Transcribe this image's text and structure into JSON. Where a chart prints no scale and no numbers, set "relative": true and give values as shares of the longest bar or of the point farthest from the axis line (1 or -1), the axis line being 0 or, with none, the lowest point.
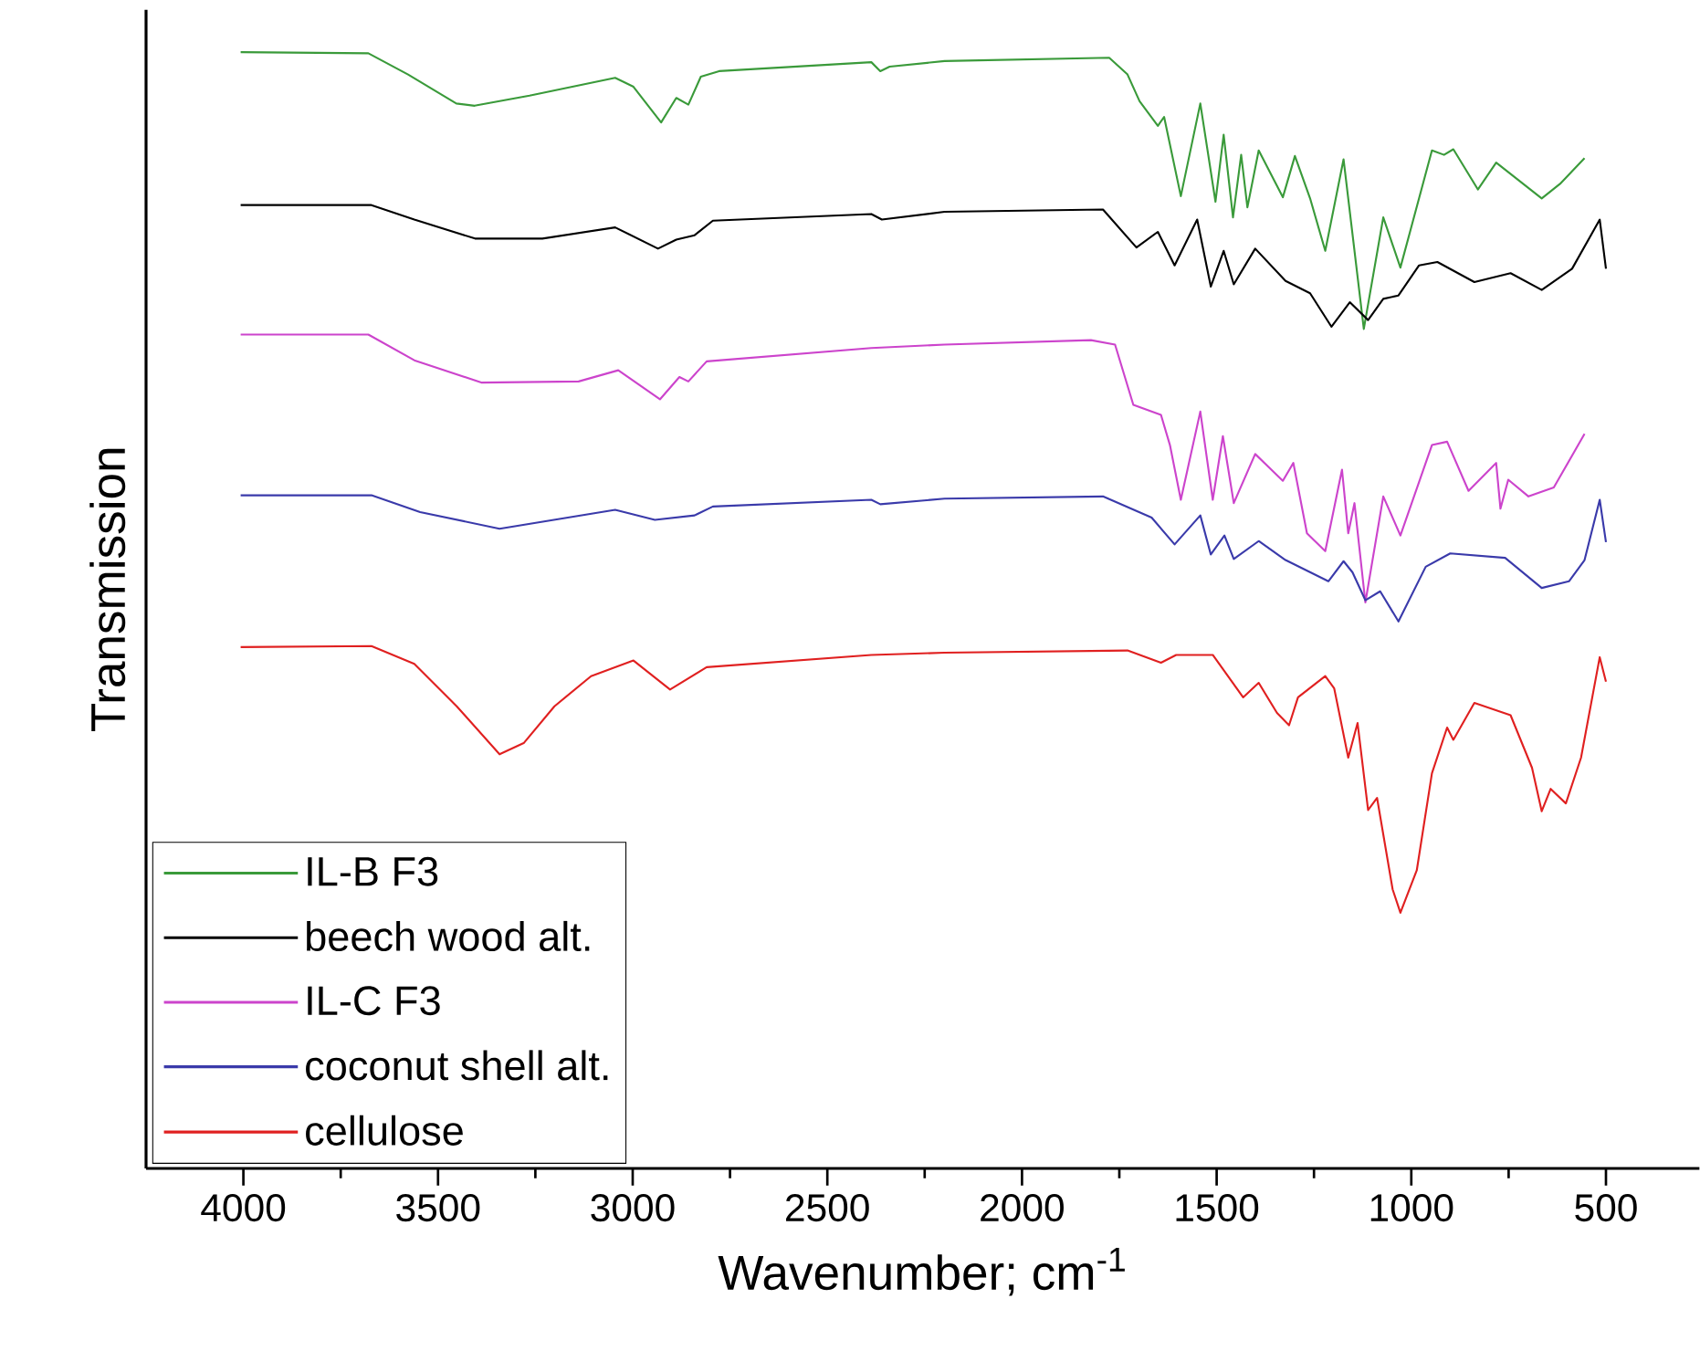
{
  "chart_data": {
    "type": "line",
    "relative": true,
    "xlabel": "Wavenumber; cm$^{-1}$",
    "ylabel": "Transmission",
    "xlim": [
      4250,
      260
    ],
    "xticks": [
      4000,
      {
        "value": 3750,
        "label": null
      },
      3500,
      {
        "value": 3250,
        "label": null
      },
      3000,
      {
        "value": 2750,
        "label": null
      },
      2500,
      {
        "value": 2250,
        "label": null
      },
      2000,
      {
        "value": 1750,
        "label": null
      },
      1500,
      {
        "value": 1250,
        "label": null
      },
      1000,
      {
        "value": 750,
        "label": null
      },
      500
    ],
    "legend": "bottom left",
    "series": [
      {
        "name": "IL-B F3",
        "color": "#3a9a3a",
        "x": [
          4007,
          3679,
          3577,
          3453,
          3406,
          3265,
          3045,
          2998,
          2927,
          2888,
          2857,
          2825,
          2778,
          2387,
          2364,
          2340,
          2199,
          1776,
          1729,
          1698,
          1651,
          1635,
          1592,
          1542,
          1503,
          1482,
          1458,
          1437,
          1421,
          1392,
          1330,
          1299,
          1260,
          1221,
          1174,
          1122,
          1072,
          1028,
          947,
          916,
          892,
          829,
          782,
          665,
          618,
          555
        ],
        "values": [
          1,
          0.999,
          0.98,
          0.954,
          0.952,
          0.961,
          0.977,
          0.969,
          0.937,
          0.959,
          0.953,
          0.978,
          0.983,
          0.991,
          0.983,
          0.987,
          0.992,
          0.995,
          0.98,
          0.956,
          0.934,
          0.942,
          0.871,
          0.954,
          0.866,
          0.926,
          0.852,
          0.908,
          0.861,
          0.912,
          0.87,
          0.907,
          0.869,
          0.822,
          0.904,
          0.752,
          0.852,
          0.807,
          0.912,
          0.908,
          0.913,
          0.877,
          0.901,
          0.869,
          0.882,
          0.905
        ]
      },
      {
        "name": "beech wood alt.",
        "color": "#000000",
        "x": [
          4007,
          3671,
          3561,
          3405,
          3232,
          3045,
          2935,
          2888,
          2841,
          2794,
          2387,
          2360,
          2199,
          1792,
          1706,
          1651,
          1608,
          1550,
          1515,
          1482,
          1456,
          1401,
          1323,
          1260,
          1205,
          1158,
          1111,
          1072,
          1033,
          980,
          933,
          838,
          745,
          665,
          587,
          516,
          500
        ],
        "values": [
          0.863,
          0.863,
          0.85,
          0.833,
          0.833,
          0.843,
          0.824,
          0.832,
          0.836,
          0.849,
          0.855,
          0.85,
          0.857,
          0.859,
          0.825,
          0.839,
          0.809,
          0.85,
          0.79,
          0.822,
          0.792,
          0.824,
          0.795,
          0.784,
          0.754,
          0.776,
          0.76,
          0.779,
          0.782,
          0.809,
          0.812,
          0.794,
          0.802,
          0.787,
          0.806,
          0.85,
          0.806
        ]
      },
      {
        "name": "IL-C F3",
        "color": "#cc44cc",
        "x": [
          4007,
          3679,
          3561,
          3389,
          3139,
          3037,
          2930,
          2880,
          2857,
          2810,
          2387,
          2199,
          1823,
          1761,
          1714,
          1643,
          1620,
          1592,
          1542,
          1510,
          1484,
          1456,
          1401,
          1330,
          1303,
          1268,
          1221,
          1178,
          1162,
          1146,
          1118,
          1072,
          1028,
          947,
          908,
          853,
          782,
          771,
          751,
          699,
          634,
          555
        ],
        "values": [
          0.747,
          0.747,
          0.724,
          0.704,
          0.705,
          0.715,
          0.689,
          0.709,
          0.705,
          0.723,
          0.735,
          0.738,
          0.742,
          0.738,
          0.684,
          0.675,
          0.648,
          0.599,
          0.678,
          0.599,
          0.656,
          0.596,
          0.64,
          0.616,
          0.632,
          0.569,
          0.553,
          0.626,
          0.569,
          0.596,
          0.507,
          0.602,
          0.567,
          0.648,
          0.651,
          0.607,
          0.632,
          0.591,
          0.617,
          0.602,
          0.61,
          0.658
        ]
      },
      {
        "name": "coconut shell alt.",
        "color": "#3a3aaa",
        "x": [
          4007,
          3671,
          3546,
          3342,
          3045,
          2943,
          2841,
          2794,
          2387,
          2364,
          2199,
          1792,
          1667,
          1608,
          1542,
          1515,
          1480,
          1456,
          1392,
          1323,
          1213,
          1174,
          1151,
          1118,
          1080,
          1033,
          963,
          900,
          759,
          665,
          595,
          555,
          516,
          500
        ],
        "values": [
          0.603,
          0.603,
          0.588,
          0.573,
          0.59,
          0.581,
          0.585,
          0.593,
          0.599,
          0.595,
          0.6,
          0.602,
          0.583,
          0.559,
          0.585,
          0.55,
          0.567,
          0.546,
          0.562,
          0.545,
          0.526,
          0.544,
          0.534,
          0.509,
          0.517,
          0.49,
          0.539,
          0.551,
          0.547,
          0.52,
          0.526,
          0.545,
          0.599,
          0.561
        ]
      },
      {
        "name": "cellulose",
        "color": "#e02020",
        "x": [
          4007,
          3671,
          3561,
          3452,
          3342,
          3280,
          3201,
          3107,
          2998,
          2904,
          2810,
          2387,
          2199,
          1729,
          1643,
          1604,
          1510,
          1432,
          1392,
          1345,
          1314,
          1291,
          1221,
          1198,
          1162,
          1138,
          1111,
          1088,
          1048,
          1028,
          986,
          947,
          908,
          892,
          838,
          745,
          690,
          665,
          642,
          603,
          564,
          548,
          516,
          500
        ],
        "values": [
          0.467,
          0.468,
          0.452,
          0.414,
          0.371,
          0.381,
          0.414,
          0.441,
          0.455,
          0.429,
          0.449,
          0.46,
          0.462,
          0.464,
          0.453,
          0.46,
          0.46,
          0.422,
          0.435,
          0.408,
          0.397,
          0.422,
          0.441,
          0.43,
          0.368,
          0.399,
          0.321,
          0.332,
          0.25,
          0.229,
          0.267,
          0.354,
          0.395,
          0.384,
          0.417,
          0.406,
          0.359,
          0.32,
          0.34,
          0.327,
          0.368,
          0.398,
          0.458,
          0.436
        ]
      }
    ]
  }
}
